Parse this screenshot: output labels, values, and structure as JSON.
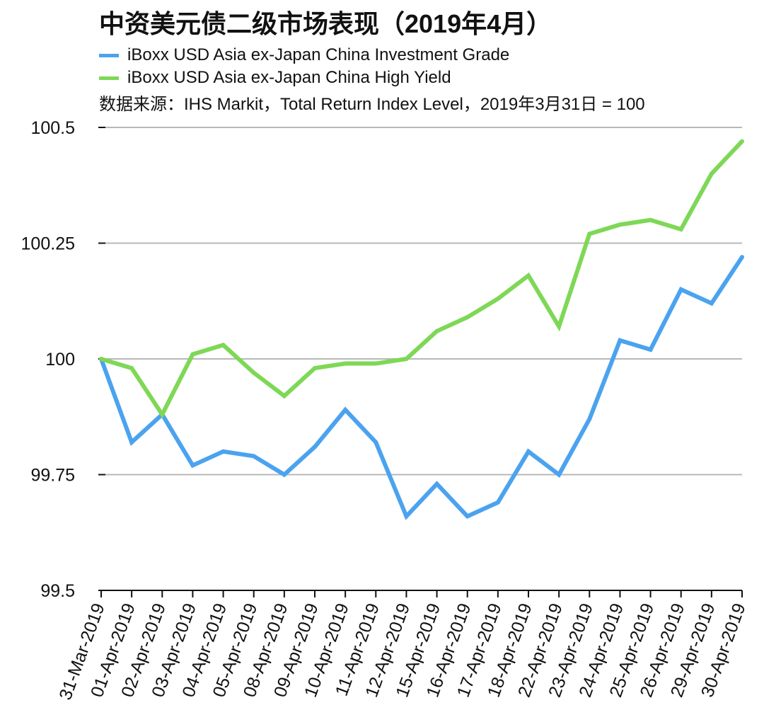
{
  "chart_data": {
    "type": "line",
    "title": "中资美元债二级市场表现（2019年4月）",
    "subtitle": "数据来源：IHS Markit，Total Return Index Level，2019年3月31日 = 100",
    "categories": [
      "31-Mar-2019",
      "01-Apr-2019",
      "02-Apr-2019",
      "03-Apr-2019",
      "04-Apr-2019",
      "05-Apr-2019",
      "08-Apr-2019",
      "09-Apr-2019",
      "10-Apr-2019",
      "11-Apr-2019",
      "12-Apr-2019",
      "15-Apr-2019",
      "16-Apr-2019",
      "17-Apr-2019",
      "18-Apr-2019",
      "22-Apr-2019",
      "23-Apr-2019",
      "24-Apr-2019",
      "25-Apr-2019",
      "26-Apr-2019",
      "29-Apr-2019",
      "30-Apr-2019"
    ],
    "series": [
      {
        "name": "iBoxx USD Asia ex-Japan China Investment Grade",
        "color": "#4BA3EF",
        "values": [
          100.0,
          99.82,
          99.88,
          99.77,
          99.8,
          99.79,
          99.75,
          99.81,
          99.89,
          99.82,
          99.66,
          99.73,
          99.66,
          99.69,
          99.8,
          99.75,
          99.87,
          100.04,
          100.02,
          100.15,
          100.12,
          100.22
        ]
      },
      {
        "name": "iBoxx USD Asia ex-Japan China High Yield",
        "color": "#7ED856",
        "values": [
          100.0,
          99.98,
          99.88,
          100.01,
          100.03,
          99.97,
          99.92,
          99.98,
          99.99,
          99.99,
          100.0,
          100.06,
          100.09,
          100.13,
          100.18,
          100.07,
          100.27,
          100.29,
          100.3,
          100.28,
          100.4,
          100.47
        ]
      }
    ],
    "ylim": [
      99.5,
      100.5
    ],
    "yticks": [
      99.5,
      99.75,
      100,
      100.25,
      100.5
    ],
    "ytick_labels": [
      "99.5",
      "99.75",
      "100",
      "100.25",
      "100.5"
    ],
    "grid": true,
    "grid_color": "#B8B8B8",
    "legend": "top-left"
  }
}
